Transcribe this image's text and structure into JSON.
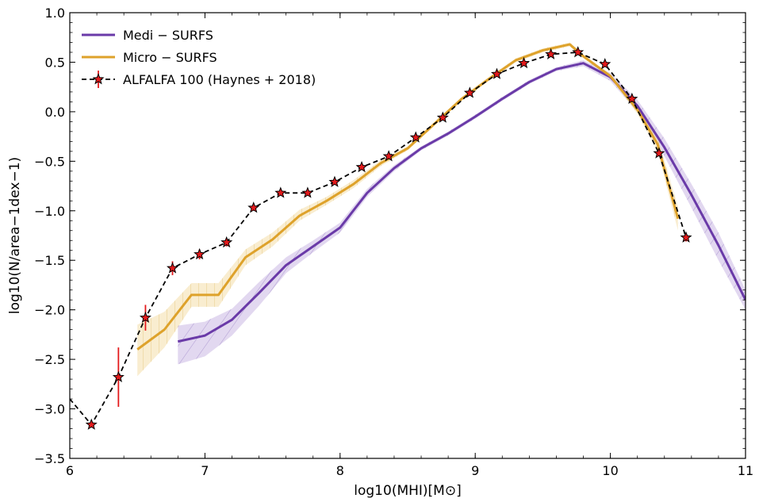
{
  "chart_data": {
    "type": "line",
    "xlabel": "log10(MHI)[M⊙]",
    "ylabel": "log10(N/area−1dex−1)",
    "xlim": [
      6,
      11
    ],
    "ylim": [
      -3.5,
      1.0
    ],
    "x_ticks": [
      6,
      7,
      8,
      9,
      10,
      11
    ],
    "y_ticks": [
      -3.5,
      -3.0,
      -2.5,
      -2.0,
      -1.5,
      -1.0,
      -0.5,
      0.0,
      0.5,
      1.0
    ],
    "x_tick_labels": [
      "6",
      "7",
      "8",
      "9",
      "10",
      "11"
    ],
    "y_tick_labels": [
      "−3.5",
      "−3.0",
      "−2.5",
      "−2.0",
      "−1.5",
      "−1.0",
      "−0.5",
      "0.0",
      "0.5",
      "1.0"
    ],
    "legend_position": "upper-left",
    "series": [
      {
        "name": "Medi − SURFS",
        "color": "#6a3aa8",
        "band_color": "#bfa9dd",
        "x": [
          6.8,
          7.0,
          7.2,
          7.4,
          7.6,
          7.8,
          8.0,
          8.2,
          8.4,
          8.6,
          8.8,
          9.0,
          9.2,
          9.4,
          9.6,
          9.8,
          10.0,
          10.2,
          10.4,
          10.6,
          10.8,
          11.0
        ],
        "y": [
          -2.32,
          -2.26,
          -2.1,
          -1.83,
          -1.55,
          -1.36,
          -1.17,
          -0.82,
          -0.57,
          -0.37,
          -0.22,
          -0.05,
          0.13,
          0.3,
          0.43,
          0.49,
          0.35,
          0.06,
          -0.36,
          -0.84,
          -1.35,
          -1.9
        ],
        "band_lower": [
          -2.55,
          -2.47,
          -2.26,
          -1.96,
          -1.63,
          -1.42,
          -1.22,
          -0.86,
          -0.6,
          -0.39,
          -0.24,
          -0.07,
          0.11,
          0.28,
          0.41,
          0.46,
          0.31,
          0.0,
          -0.45,
          -0.97,
          -1.5,
          -2.0
        ],
        "band_upper": [
          -2.16,
          -2.12,
          -1.99,
          -1.72,
          -1.47,
          -1.3,
          -1.12,
          -0.78,
          -0.54,
          -0.35,
          -0.2,
          -0.03,
          0.15,
          0.32,
          0.45,
          0.52,
          0.39,
          0.12,
          -0.27,
          -0.73,
          -1.22,
          -1.8
        ]
      },
      {
        "name": "Micro − SURFS",
        "color": "#dea22b",
        "band_color": "#f1d797",
        "x": [
          6.5,
          6.7,
          6.9,
          7.1,
          7.3,
          7.5,
          7.7,
          7.9,
          8.1,
          8.3,
          8.5,
          8.7,
          8.9,
          9.1,
          9.3,
          9.5,
          9.7,
          9.8,
          10.0,
          10.2,
          10.35,
          10.5
        ],
        "y": [
          -2.4,
          -2.2,
          -1.85,
          -1.85,
          -1.47,
          -1.29,
          -1.05,
          -0.9,
          -0.73,
          -0.52,
          -0.37,
          -0.12,
          0.13,
          0.33,
          0.52,
          0.62,
          0.68,
          0.56,
          0.36,
          0.02,
          -0.33,
          -1.08
        ],
        "band_lower": [
          -2.67,
          -2.38,
          -1.97,
          -1.97,
          -1.55,
          -1.36,
          -1.1,
          -0.94,
          -0.77,
          -0.55,
          -0.39,
          -0.14,
          0.11,
          0.31,
          0.5,
          0.6,
          0.66,
          0.54,
          0.34,
          -0.02,
          -0.4,
          -1.2
        ],
        "band_upper": [
          -2.15,
          -2.02,
          -1.73,
          -1.73,
          -1.39,
          -1.22,
          -0.99,
          -0.86,
          -0.69,
          -0.49,
          -0.35,
          -0.1,
          0.15,
          0.35,
          0.54,
          0.64,
          0.7,
          0.58,
          0.38,
          0.06,
          -0.26,
          -0.96
        ]
      },
      {
        "name": "ALFALFA 100 (Haynes + 2018)",
        "color": "#000000",
        "marker_color": "#e31a1c",
        "errorbar_color": "#e31a1c",
        "x": [
          6.0,
          6.16,
          6.36,
          6.56,
          6.76,
          6.96,
          7.16,
          7.36,
          7.56,
          7.76,
          7.96,
          8.16,
          8.36,
          8.56,
          8.76,
          8.96,
          9.16,
          9.36,
          9.56,
          9.76,
          9.96,
          10.16,
          10.36,
          10.56
        ],
        "y": [
          -2.9,
          -3.16,
          -2.68,
          -2.08,
          -1.58,
          -1.44,
          -1.32,
          -0.97,
          -0.82,
          -0.82,
          -0.71,
          -0.56,
          -0.45,
          -0.26,
          -0.06,
          0.19,
          0.38,
          0.49,
          0.58,
          0.6,
          0.48,
          0.13,
          -0.42,
          -1.27
        ],
        "markers": [
          false,
          true,
          true,
          true,
          true,
          true,
          true,
          true,
          true,
          true,
          true,
          true,
          true,
          true,
          true,
          true,
          true,
          true,
          true,
          true,
          true,
          true,
          true,
          true
        ],
        "yerr": [
          0,
          0.0,
          0.3,
          0.13,
          0.07,
          0.05,
          0.04,
          0.03,
          0.02,
          0.02,
          0.02,
          0.02,
          0.02,
          0.02,
          0.02,
          0.02,
          0.02,
          0.02,
          0.02,
          0.02,
          0.02,
          0.02,
          0.03,
          0.04
        ]
      }
    ]
  }
}
